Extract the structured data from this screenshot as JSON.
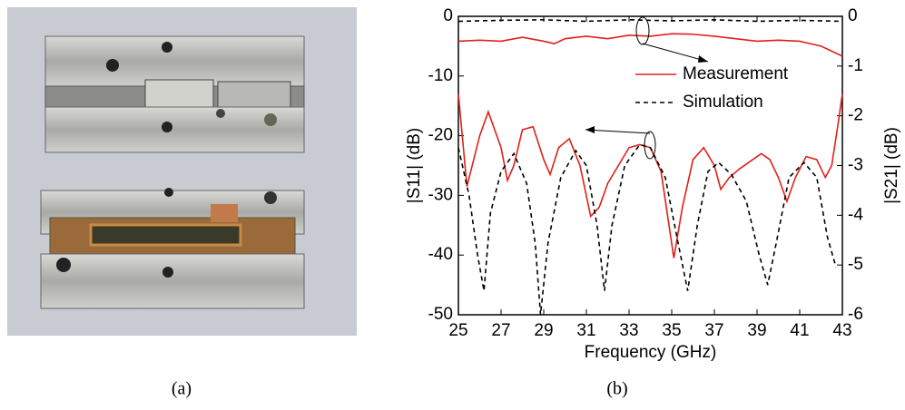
{
  "panel_labels": [
    "(a)",
    "(b)"
  ],
  "chart_data": {
    "type": "line",
    "xlabel": "Frequency (GHz)",
    "ylabel": "|S11| (dB)",
    "y2label": "|S21| (dB)",
    "xlim": [
      25,
      43
    ],
    "xticks": [
      25,
      27,
      29,
      31,
      33,
      35,
      37,
      39,
      41,
      43
    ],
    "ylim": [
      -50,
      0
    ],
    "yticks": [
      0,
      -10,
      -20,
      -30,
      -40,
      -50
    ],
    "y2lim": [
      -6,
      0
    ],
    "y2ticks": [
      0,
      -1,
      -2,
      -3,
      -4,
      -5,
      -6
    ],
    "legend": [
      {
        "name": "Measurement",
        "color": "#e0201b",
        "dash": false
      },
      {
        "name": "Simulation",
        "color": "#000000",
        "dash": true
      }
    ],
    "series": [
      {
        "color": "#e0201b",
        "dash": false,
        "axis": "y",
        "x": [
          25,
          25.4,
          26,
          26.4,
          27,
          27.3,
          27.6,
          28,
          28.5,
          29,
          29.3,
          29.7,
          30.2,
          30.7,
          31.2,
          31.6,
          32,
          32.5,
          33,
          33.5,
          34,
          34.5,
          35.1,
          35.5,
          36,
          36.5,
          37,
          37.3,
          37.7,
          38.2,
          38.8,
          39.2,
          39.6,
          40,
          40.4,
          40.8,
          41.3,
          41.8,
          42.2,
          42.5,
          42.8,
          43
        ],
        "values": [
          -13,
          -28.5,
          -20,
          -16,
          -22,
          -27.5,
          -25,
          -19,
          -18.5,
          -24,
          -26.5,
          -22,
          -20.5,
          -25,
          -33.5,
          -32,
          -28,
          -25,
          -22,
          -21.5,
          -22,
          -26,
          -40.5,
          -32,
          -24,
          -22,
          -25,
          -29,
          -27,
          -25.5,
          -24,
          -23,
          -24,
          -27,
          -31,
          -27,
          -23.5,
          -24,
          -27,
          -25,
          -18,
          -13
        ]
      },
      {
        "color": "#000000",
        "dash": true,
        "axis": "y",
        "x": [
          25,
          25.5,
          25.9,
          26.2,
          26.5,
          27,
          27.6,
          28.2,
          28.6,
          28.85,
          29.2,
          29.8,
          30.5,
          31,
          31.5,
          31.85,
          32.2,
          32.8,
          33.5,
          34,
          34.7,
          35.3,
          35.75,
          36.2,
          36.7,
          37.2,
          37.8,
          38.5,
          39.1,
          39.5,
          39.9,
          40.5,
          41.2,
          41.8,
          42.3,
          42.7
        ],
        "values": [
          -22,
          -30,
          -40,
          -46,
          -33,
          -26,
          -23,
          -28,
          -38,
          -50,
          -38,
          -27,
          -22.5,
          -25,
          -35,
          -46,
          -35,
          -25,
          -21.5,
          -22,
          -27,
          -38,
          -46,
          -35,
          -26,
          -24.5,
          -26.5,
          -31,
          -40,
          -45,
          -38,
          -27,
          -24.5,
          -27,
          -37,
          -42
        ]
      },
      {
        "color": "#e0201b",
        "dash": false,
        "axis": "y2",
        "x": [
          25,
          26,
          27,
          28,
          29,
          29.5,
          30,
          31,
          32,
          33,
          34,
          35,
          36,
          37,
          38,
          39,
          40,
          41,
          42,
          43
        ],
        "values": [
          -0.5,
          -0.48,
          -0.5,
          -0.42,
          -0.5,
          -0.55,
          -0.45,
          -0.4,
          -0.45,
          -0.38,
          -0.4,
          -0.35,
          -0.36,
          -0.4,
          -0.45,
          -0.5,
          -0.48,
          -0.5,
          -0.6,
          -0.8
        ]
      },
      {
        "color": "#000000",
        "dash": true,
        "axis": "y2",
        "x": [
          25,
          27,
          29,
          31,
          33,
          35,
          37,
          39,
          41,
          43
        ],
        "values": [
          -0.1,
          -0.08,
          -0.07,
          -0.1,
          -0.07,
          -0.09,
          -0.07,
          -0.1,
          -0.08,
          -0.1
        ]
      }
    ]
  }
}
